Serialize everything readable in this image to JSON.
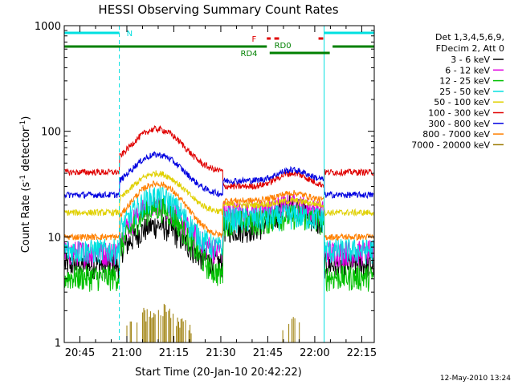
{
  "chart_data": {
    "type": "line",
    "title": "HESSI Observing Summary Count Rates",
    "xlabel": "Start Time (20-Jan-10 20:42:22)",
    "ylabel": "Count Rate (s⁻¹ detector⁻¹)",
    "ylabel_parts": {
      "main": "Count Rate (s",
      "sup1": "-1",
      "mid": " detector",
      "sup2": "-1",
      "end": ")"
    },
    "y_scale": "log",
    "ylim": [
      1,
      1000
    ],
    "xlim": [
      20.6667,
      22.3167
    ],
    "x_ticks": [
      "20:45",
      "21:00",
      "21:15",
      "21:30",
      "21:45",
      "22:00",
      "22:15"
    ],
    "y_ticks": [
      "1",
      "10",
      "100",
      "1000"
    ],
    "legend_header": [
      "Det 1,3,4,5,6,9,",
      "FDecim 2, Att 0"
    ],
    "timestamp": "12-May-2010 13:24",
    "night_intervals": [
      [
        20.6667,
        20.96
      ],
      [
        22.05,
        22.3167
      ]
    ],
    "saa_interval": [
      21.51,
      22.05
    ],
    "flag_labels": {
      "N": "N",
      "F": "F",
      "RD0": "RD0",
      "RD4": "RD4"
    },
    "series": [
      {
        "name": "3 - 6 keV",
        "color": "#000000",
        "peak1": 13,
        "day2": 20,
        "saa": 12,
        "night": 5.5
      },
      {
        "name": "6 - 12 keV",
        "color": "#e000e0",
        "peak1": 20,
        "day2": 20,
        "saa": 17,
        "night": 7.2
      },
      {
        "name": "12 - 25 keV",
        "color": "#00c000",
        "peak1": 19,
        "day2": 16,
        "saa": 14,
        "night": 4.2
      },
      {
        "name": "25 - 50 keV",
        "color": "#00e0e0",
        "peak1": 24,
        "day2": 16,
        "saa": 15,
        "night": 7.5
      },
      {
        "name": "50 - 100 keV",
        "color": "#e0d000",
        "peak1": 40,
        "day2": 22,
        "saa": 20,
        "night": 17
      },
      {
        "name": "100 - 300 keV",
        "color": "#e00000",
        "peak1": 105,
        "day2": 40,
        "saa": 30,
        "night": 41
      },
      {
        "name": "300 - 800 keV",
        "color": "#0000e0",
        "peak1": 60,
        "day2": 43,
        "saa": 34,
        "night": 25
      },
      {
        "name": "800 - 7000 keV",
        "color": "#ff8000",
        "peak1": 32,
        "day2": 26,
        "saa": 22,
        "night": 10
      },
      {
        "name": "7000 - 20000 keV",
        "color": "#9a7a00",
        "peak1": 2.0,
        "day2": 1.6,
        "saa": 1.0,
        "night": 0
      }
    ]
  }
}
